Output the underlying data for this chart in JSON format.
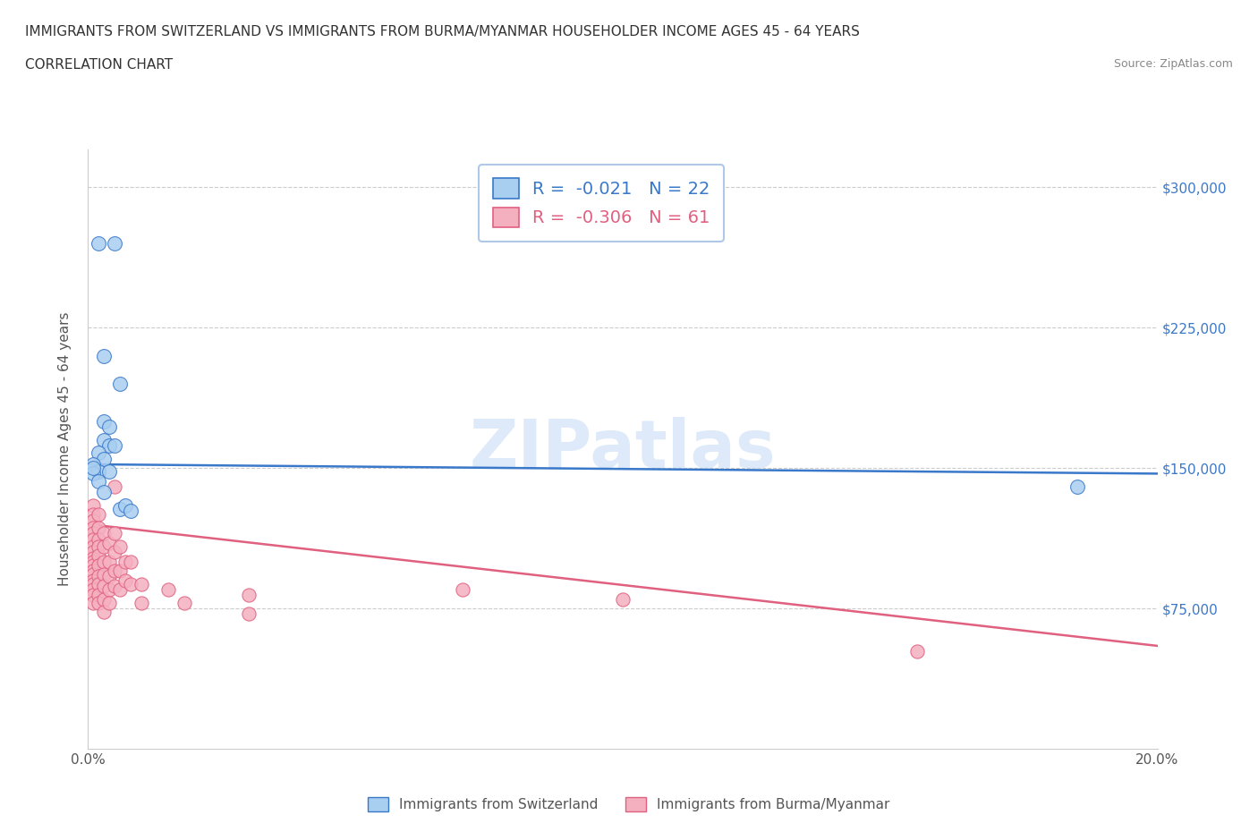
{
  "title_line1": "IMMIGRANTS FROM SWITZERLAND VS IMMIGRANTS FROM BURMA/MYANMAR HOUSEHOLDER INCOME AGES 45 - 64 YEARS",
  "title_line2": "CORRELATION CHART",
  "source_text": "Source: ZipAtlas.com",
  "ylabel": "Householder Income Ages 45 - 64 years",
  "xlim": [
    0.0,
    0.2
  ],
  "ylim": [
    0,
    320000
  ],
  "xticks": [
    0.0,
    0.02,
    0.04,
    0.06,
    0.08,
    0.1,
    0.12,
    0.14,
    0.16,
    0.18,
    0.2
  ],
  "xticklabels": [
    "0.0%",
    "",
    "",
    "",
    "",
    "",
    "",
    "",
    "",
    "",
    "20.0%"
  ],
  "ytick_values": [
    75000,
    150000,
    225000,
    300000
  ],
  "ytick_labels": [
    "$75,000",
    "$150,000",
    "$225,000",
    "$300,000"
  ],
  "switzerland_color": "#a8cef0",
  "burma_color": "#f5b0c0",
  "switzerland_line_color": "#3a78c9",
  "burma_line_color": "#e06080",
  "legend_border_color": "#b0c8e8",
  "watermark": "ZIPatlas",
  "r_switzerland": -0.021,
  "n_switzerland": 22,
  "r_burma": -0.306,
  "n_burma": 61,
  "switzerland_scatter": [
    [
      0.002,
      270000
    ],
    [
      0.005,
      270000
    ],
    [
      0.003,
      210000
    ],
    [
      0.006,
      195000
    ],
    [
      0.003,
      175000
    ],
    [
      0.004,
      172000
    ],
    [
      0.003,
      165000
    ],
    [
      0.004,
      162000
    ],
    [
      0.002,
      158000
    ],
    [
      0.003,
      155000
    ],
    [
      0.001,
      152000
    ],
    [
      0.002,
      148000
    ],
    [
      0.004,
      148000
    ],
    [
      0.001,
      147000
    ],
    [
      0.005,
      162000
    ],
    [
      0.001,
      150000
    ],
    [
      0.002,
      143000
    ],
    [
      0.003,
      137000
    ],
    [
      0.006,
      128000
    ],
    [
      0.007,
      130000
    ],
    [
      0.008,
      127000
    ],
    [
      0.185,
      140000
    ]
  ],
  "burma_scatter": [
    [
      0.001,
      130000
    ],
    [
      0.001,
      125000
    ],
    [
      0.001,
      122000
    ],
    [
      0.001,
      118000
    ],
    [
      0.001,
      115000
    ],
    [
      0.001,
      112000
    ],
    [
      0.001,
      108000
    ],
    [
      0.001,
      105000
    ],
    [
      0.001,
      102000
    ],
    [
      0.001,
      100000
    ],
    [
      0.001,
      98000
    ],
    [
      0.001,
      95000
    ],
    [
      0.001,
      93000
    ],
    [
      0.001,
      90000
    ],
    [
      0.001,
      88000
    ],
    [
      0.001,
      85000
    ],
    [
      0.001,
      82000
    ],
    [
      0.001,
      78000
    ],
    [
      0.002,
      125000
    ],
    [
      0.002,
      118000
    ],
    [
      0.002,
      112000
    ],
    [
      0.002,
      108000
    ],
    [
      0.002,
      103000
    ],
    [
      0.002,
      98000
    ],
    [
      0.002,
      92000
    ],
    [
      0.002,
      88000
    ],
    [
      0.002,
      82000
    ],
    [
      0.002,
      78000
    ],
    [
      0.003,
      115000
    ],
    [
      0.003,
      108000
    ],
    [
      0.003,
      100000
    ],
    [
      0.003,
      93000
    ],
    [
      0.003,
      87000
    ],
    [
      0.003,
      80000
    ],
    [
      0.003,
      73000
    ],
    [
      0.004,
      110000
    ],
    [
      0.004,
      100000
    ],
    [
      0.004,
      92000
    ],
    [
      0.004,
      85000
    ],
    [
      0.004,
      78000
    ],
    [
      0.005,
      140000
    ],
    [
      0.005,
      115000
    ],
    [
      0.005,
      105000
    ],
    [
      0.005,
      95000
    ],
    [
      0.005,
      87000
    ],
    [
      0.006,
      108000
    ],
    [
      0.006,
      95000
    ],
    [
      0.006,
      85000
    ],
    [
      0.007,
      100000
    ],
    [
      0.007,
      90000
    ],
    [
      0.008,
      100000
    ],
    [
      0.008,
      88000
    ],
    [
      0.01,
      88000
    ],
    [
      0.01,
      78000
    ],
    [
      0.015,
      85000
    ],
    [
      0.018,
      78000
    ],
    [
      0.03,
      82000
    ],
    [
      0.03,
      72000
    ],
    [
      0.07,
      85000
    ],
    [
      0.1,
      80000
    ],
    [
      0.155,
      52000
    ]
  ]
}
